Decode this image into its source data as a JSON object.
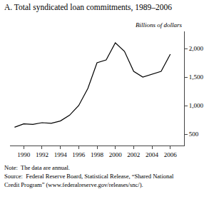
{
  "chart_data": {
    "type": "line",
    "title": "A. Total syndicated loan commitments, 1989–2006",
    "ylabel": "Billions of dollars",
    "x": [
      1989,
      1990,
      1991,
      1992,
      1993,
      1994,
      1995,
      1996,
      1997,
      1998,
      1999,
      2000,
      2001,
      2002,
      2003,
      2004,
      2005,
      2006
    ],
    "values": [
      620,
      680,
      670,
      700,
      690,
      730,
      830,
      1000,
      1300,
      1750,
      1800,
      2100,
      1950,
      1600,
      1500,
      1550,
      1600,
      1900
    ],
    "color": "#000000",
    "xlim": [
      1988.5,
      2007.5
    ],
    "xticks": [
      1990,
      1992,
      1994,
      1996,
      1998,
      2000,
      2002,
      2004,
      2006
    ],
    "ylim": [
      300,
      2300
    ],
    "yticks": [
      500,
      {
        "value": 1000,
        "label": "1,000"
      },
      {
        "value": 1500,
        "label": "1,500"
      },
      {
        "value": 2000,
        "label": "2,000"
      }
    ],
    "grid": false,
    "annotations": [
      "Note:  The data are annual.",
      "Source:  Federal Reserve Board, Statistical Release, “Shared National",
      "Credit Program” (www.federalreserve.gov/releases/snc/)."
    ]
  }
}
